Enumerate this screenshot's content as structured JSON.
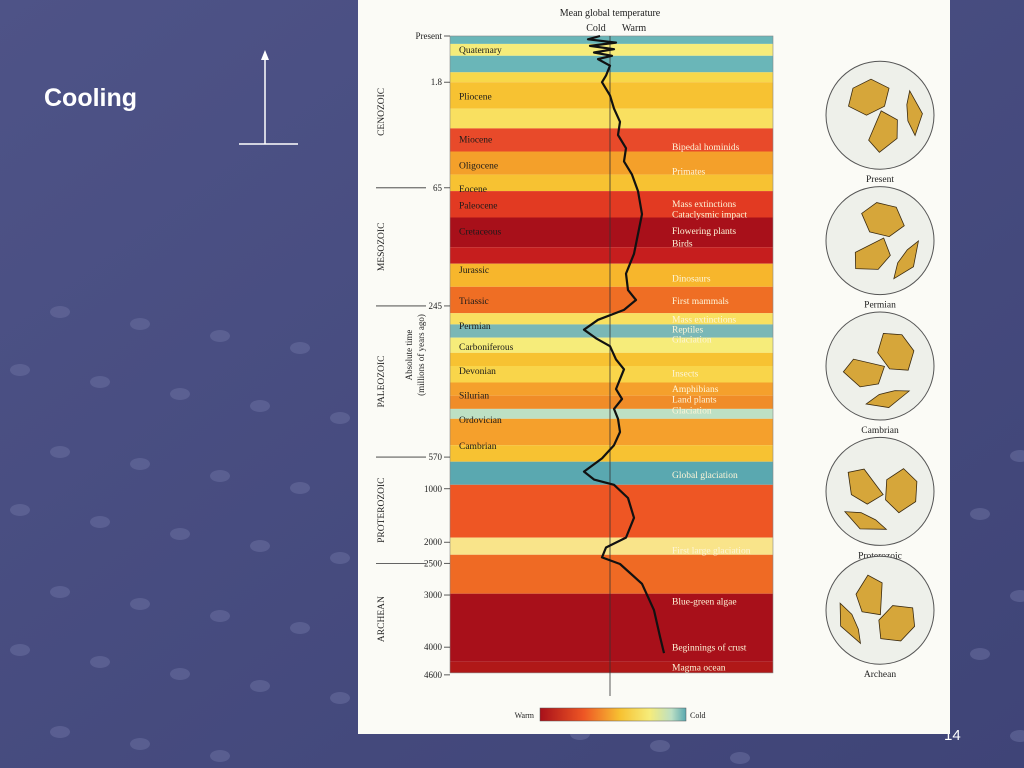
{
  "slide": {
    "title": "Cooling",
    "page_number": "14",
    "background_color": "#4a4f82",
    "dot_color": "#6a6fa0"
  },
  "figure": {
    "header": "Mean global temperature",
    "cold_label": "Cold",
    "warm_label": "Warm",
    "axis_label_line1": "Absolute time",
    "axis_label_line2": "(millions of years ago)",
    "colorbar_warm": "Warm",
    "colorbar_cold": "Cold",
    "eras": [
      {
        "name": "CENOZOIC",
        "from": 0,
        "to": 65
      },
      {
        "name": "MESOZOIC",
        "from": 65,
        "to": 245
      },
      {
        "name": "PALEOZOIC",
        "from": 245,
        "to": 570
      },
      {
        "name": "PROTEROZOIC",
        "from": 570,
        "to": 2500
      },
      {
        "name": "ARCHEAN",
        "from": 2500,
        "to": 4600
      }
    ],
    "periods": [
      {
        "name": "Quaternary",
        "level": 0.02
      },
      {
        "name": "Pliocene",
        "level": 0.09
      },
      {
        "name": "Miocene",
        "level": 0.155
      },
      {
        "name": "Oligocene",
        "level": 0.195
      },
      {
        "name": "Eocene",
        "level": 0.23
      },
      {
        "name": "Paleocene",
        "level": 0.255
      },
      {
        "name": "Cretaceous",
        "level": 0.295
      },
      {
        "name": "Jurassic",
        "level": 0.353
      },
      {
        "name": "Triassic",
        "level": 0.4
      },
      {
        "name": "Permian",
        "level": 0.438
      },
      {
        "name": "Carboniferous",
        "level": 0.47
      },
      {
        "name": "Devonian",
        "level": 0.506
      },
      {
        "name": "Silurian",
        "level": 0.543
      },
      {
        "name": "Ordovician",
        "level": 0.58
      },
      {
        "name": "Cambrian",
        "level": 0.62
      }
    ],
    "ticks": [
      {
        "label": "Present",
        "level": 0.0
      },
      {
        "label": "1.8",
        "level": 0.07
      },
      {
        "label": "65",
        "level": 0.23
      },
      {
        "label": "245",
        "level": 0.409
      },
      {
        "label": "570",
        "level": 0.638
      },
      {
        "label": "1000",
        "level": 0.686
      },
      {
        "label": "2000",
        "level": 0.767
      },
      {
        "label": "2500",
        "level": 0.799
      },
      {
        "label": "3000",
        "level": 0.847
      },
      {
        "label": "4000",
        "level": 0.926
      },
      {
        "label": "4600",
        "level": 0.968
      }
    ],
    "events": [
      {
        "text": "Bipedal hominids",
        "level": 0.167
      },
      {
        "text": "Primates",
        "level": 0.204
      },
      {
        "text": "Mass extinctions",
        "level": 0.253
      },
      {
        "text": "Cataclysmic impact",
        "level": 0.269
      },
      {
        "text": "Flowering plants",
        "level": 0.294
      },
      {
        "text": "Birds",
        "level": 0.313
      },
      {
        "text": "Dinosaurs",
        "level": 0.366
      },
      {
        "text": "First mammals",
        "level": 0.4
      },
      {
        "text": "Mass extinctions",
        "level": 0.428
      },
      {
        "text": "Reptiles",
        "level": 0.443
      },
      {
        "text": "Glaciation",
        "level": 0.458
      },
      {
        "text": "Insects",
        "level": 0.51
      },
      {
        "text": "Amphibians",
        "level": 0.533
      },
      {
        "text": "Land plants",
        "level": 0.549
      },
      {
        "text": "Glaciation",
        "level": 0.566
      },
      {
        "text": "Global glaciation",
        "level": 0.664
      },
      {
        "text": "First large glaciation",
        "level": 0.778
      },
      {
        "text": "Blue-green algae",
        "level": 0.855
      },
      {
        "text": "Beginnings of crust",
        "level": 0.925
      },
      {
        "text": "Magma ocean",
        "level": 0.955
      }
    ],
    "bands": [
      {
        "from": 0.0,
        "to": 0.012,
        "color": "#6ab6b8"
      },
      {
        "from": 0.012,
        "to": 0.03,
        "color": "#f6ec7a"
      },
      {
        "from": 0.03,
        "to": 0.055,
        "color": "#6ab6b8"
      },
      {
        "from": 0.055,
        "to": 0.07,
        "color": "#f7d84a"
      },
      {
        "from": 0.07,
        "to": 0.11,
        "color": "#f7c232"
      },
      {
        "from": 0.11,
        "to": 0.14,
        "color": "#f9e060"
      },
      {
        "from": 0.14,
        "to": 0.175,
        "color": "#e84a2a"
      },
      {
        "from": 0.175,
        "to": 0.21,
        "color": "#f4a02a"
      },
      {
        "from": 0.21,
        "to": 0.235,
        "color": "#f7c232"
      },
      {
        "from": 0.235,
        "to": 0.275,
        "color": "#e23a22"
      },
      {
        "from": 0.275,
        "to": 0.32,
        "color": "#a8101a"
      },
      {
        "from": 0.32,
        "to": 0.345,
        "color": "#c61e1e"
      },
      {
        "from": 0.345,
        "to": 0.38,
        "color": "#f7b62c"
      },
      {
        "from": 0.38,
        "to": 0.42,
        "color": "#ef6e24"
      },
      {
        "from": 0.42,
        "to": 0.437,
        "color": "#f9e060"
      },
      {
        "from": 0.437,
        "to": 0.457,
        "color": "#7ab7b6"
      },
      {
        "from": 0.457,
        "to": 0.48,
        "color": "#f6ec7a"
      },
      {
        "from": 0.48,
        "to": 0.5,
        "color": "#f7c232"
      },
      {
        "from": 0.5,
        "to": 0.525,
        "color": "#f9d54a"
      },
      {
        "from": 0.525,
        "to": 0.545,
        "color": "#f5a02c"
      },
      {
        "from": 0.545,
        "to": 0.565,
        "color": "#f08c28"
      },
      {
        "from": 0.565,
        "to": 0.58,
        "color": "#bde0c4"
      },
      {
        "from": 0.58,
        "to": 0.62,
        "color": "#f5a02c"
      },
      {
        "from": 0.62,
        "to": 0.645,
        "color": "#f7c232"
      },
      {
        "from": 0.645,
        "to": 0.68,
        "color": "#5aa8b0"
      },
      {
        "from": 0.68,
        "to": 0.76,
        "color": "#ee5624"
      },
      {
        "from": 0.76,
        "to": 0.786,
        "color": "#f9e48a"
      },
      {
        "from": 0.786,
        "to": 0.845,
        "color": "#ef6a24"
      },
      {
        "from": 0.845,
        "to": 0.948,
        "color": "#a8101a"
      },
      {
        "from": 0.948,
        "to": 0.965,
        "color": "#b01818"
      }
    ],
    "globes": [
      {
        "label": "Present",
        "level": 0.12
      },
      {
        "label": "Permian",
        "level": 0.31
      },
      {
        "label": "Cambrian",
        "level": 0.5
      },
      {
        "label": "Proterozoic",
        "level": 0.69
      },
      {
        "label": "Archean",
        "level": 0.87
      }
    ]
  }
}
